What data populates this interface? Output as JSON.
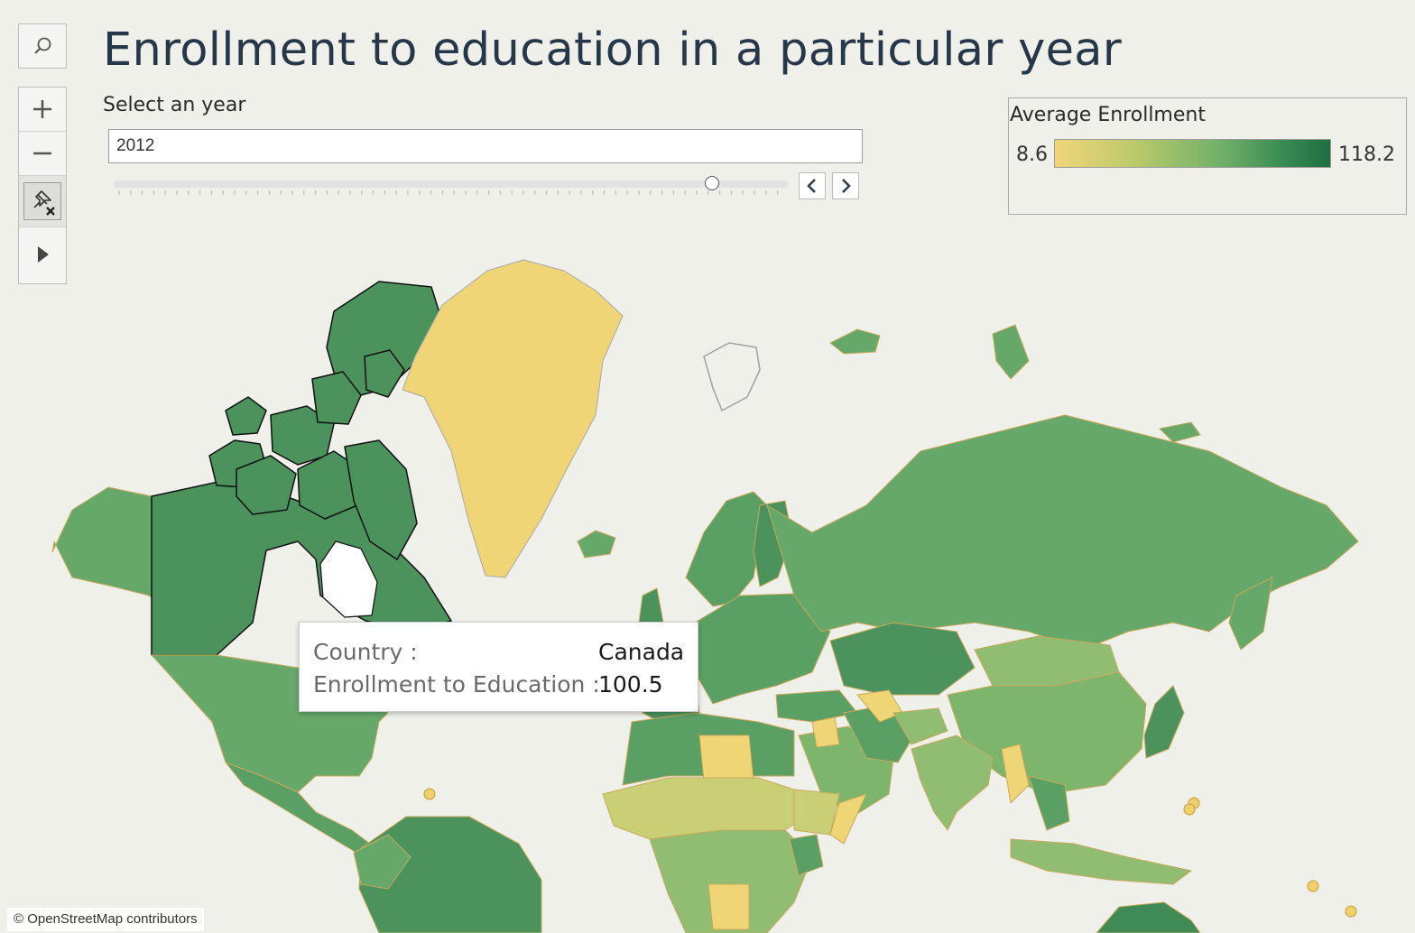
{
  "header": {
    "title": "Enrollment to education in a particular year"
  },
  "year_filter": {
    "label": "Select an year",
    "value": "2012",
    "position_fraction": 0.887
  },
  "legend": {
    "title": "Average Enrollment",
    "min": "8.6",
    "max": "118.2",
    "colors": [
      "#f2d57a",
      "#b8c96a",
      "#72b06a",
      "#3b8d55",
      "#1f6e40"
    ]
  },
  "tooltip": {
    "country_label": "Country :",
    "country_value": "Canada",
    "metric_label": "Enrollment to Education :",
    "metric_value": "100.5"
  },
  "map": {
    "attribution": "© OpenStreetMap contributors"
  },
  "toolbar": {
    "icons": [
      "search-icon",
      "zoom-in-icon",
      "zoom-out-icon",
      "pin-clear-icon",
      "play-icon"
    ]
  }
}
